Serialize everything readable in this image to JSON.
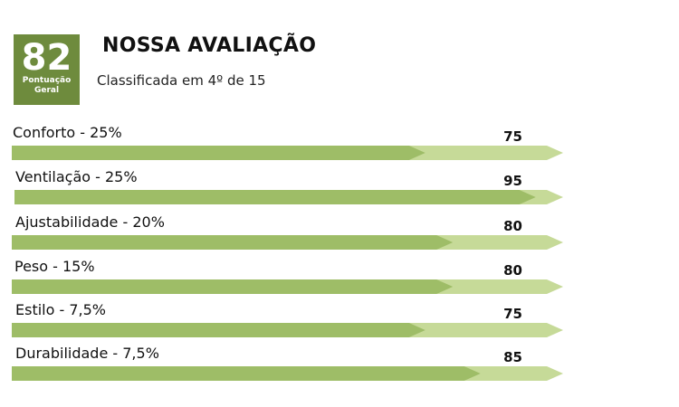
{
  "score": {
    "value": "82",
    "label": "Pontuação Geral",
    "bg_color": "#6e8b3d"
  },
  "header": {
    "title": "NOSSA AVALIAÇÃO",
    "subtitle": "Classificada em 4º de 15"
  },
  "colors": {
    "bar_fill": "#9ebd67",
    "bar_track": "#c6da98"
  },
  "chart_data": {
    "type": "bar",
    "orientation": "horizontal",
    "xlim": [
      0,
      100
    ],
    "grid": false,
    "categories": [
      "Conforto - 25%",
      "Ventilação - 25%",
      "Ajustabilidade - 20%",
      "Peso - 15%",
      "Estilo - 7,5%",
      "Durabilidade - 7,5%"
    ],
    "values": [
      75,
      95,
      80,
      80,
      75,
      85
    ],
    "value_labels": [
      "75",
      "95",
      "80",
      "80",
      "75",
      "85"
    ]
  }
}
